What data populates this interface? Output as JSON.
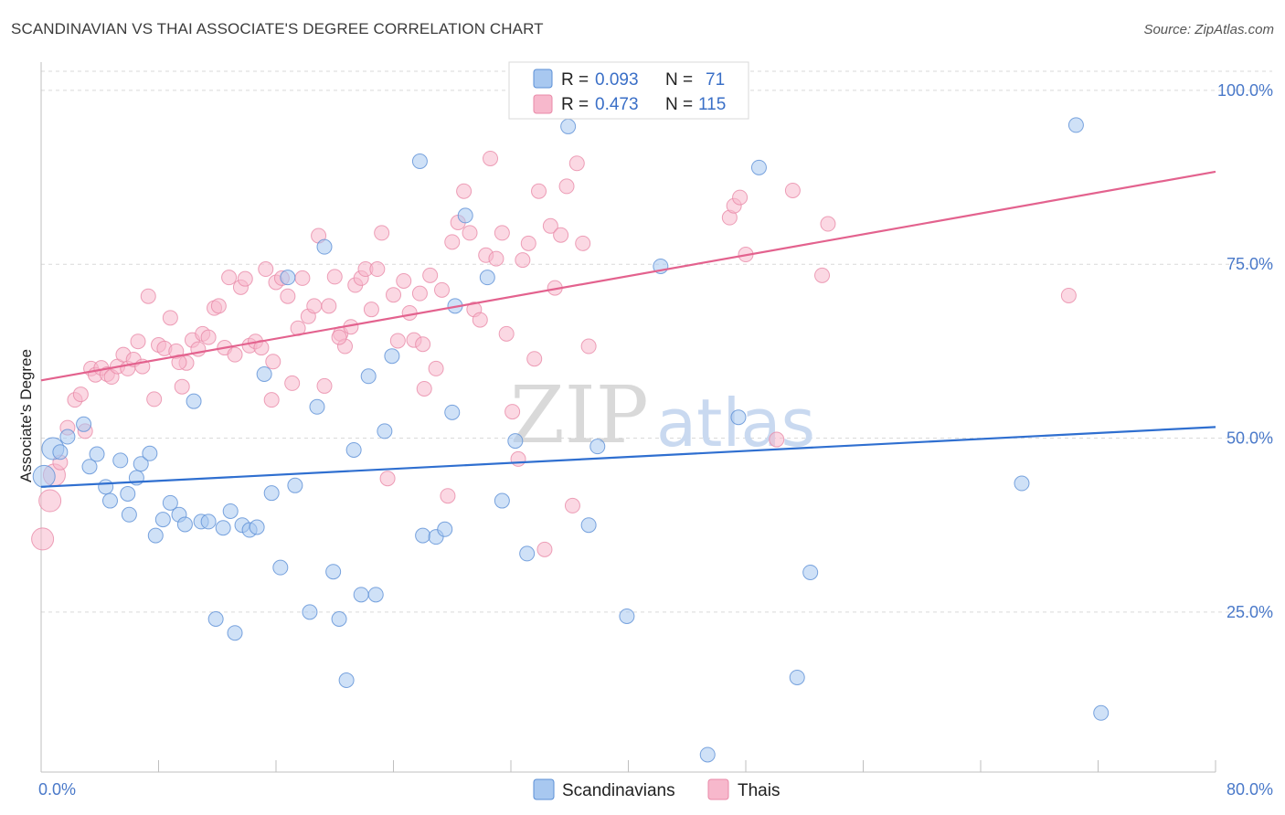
{
  "header": {
    "title": "SCANDINAVIAN VS THAI ASSOCIATE'S DEGREE CORRELATION CHART",
    "source": "Source: ZipAtlas.com"
  },
  "watermark": {
    "zip": "ZIP",
    "atlas": "atlas"
  },
  "legend": {
    "r_label": "R =",
    "n_label": "N =",
    "rows": [
      {
        "r": "0.093",
        "n": "71",
        "color": "#a8c8f0"
      },
      {
        "r": "0.473",
        "n": "115",
        "color": "#f7b8cc"
      }
    ]
  },
  "bottom_legend": [
    {
      "label": "Scandinavians",
      "color": "#a8c8f0"
    },
    {
      "label": "Thais",
      "color": "#f7b8cc"
    }
  ],
  "colors": {
    "blue_fill": "#a8c8f0",
    "blue_stroke": "#5b8fd6",
    "blue_line": "#2f6fd0",
    "pink_fill": "#f7b8cc",
    "pink_stroke": "#e98aa8",
    "pink_line": "#e3628e",
    "grid": "#d9d9d9",
    "tick": "#4a79c9"
  },
  "chart_data": {
    "type": "scatter",
    "title": "SCANDINAVIAN VS THAI ASSOCIATE'S DEGREE CORRELATION CHART",
    "xlabel": "",
    "ylabel": "Associate's Degree",
    "xlim": [
      0,
      80
    ],
    "ylim": [
      2,
      103
    ],
    "x_tick_labels": [
      {
        "value": 0,
        "label": "0.0%"
      },
      {
        "value": 80,
        "label": "80.0%"
      }
    ],
    "y_tick_labels": [
      {
        "value": 25,
        "label": "25.0%"
      },
      {
        "value": 50,
        "label": "50.0%"
      },
      {
        "value": 75,
        "label": "75.0%"
      },
      {
        "value": 100,
        "label": "100.0%"
      }
    ],
    "series": [
      {
        "name": "Scandinavians",
        "r": 0.093,
        "n": 71,
        "trend": {
          "x": [
            0,
            80
          ],
          "y": [
            43.0,
            51.6
          ]
        },
        "points": [
          [
            0.2,
            44.5
          ],
          [
            0.8,
            48.5
          ],
          [
            1.3,
            48.0
          ],
          [
            1.8,
            50.2
          ],
          [
            2.9,
            52.0
          ],
          [
            3.3,
            45.9
          ],
          [
            3.8,
            47.7
          ],
          [
            4.4,
            43.0
          ],
          [
            4.7,
            41.0
          ],
          [
            5.4,
            46.8
          ],
          [
            5.9,
            42.0
          ],
          [
            6.5,
            44.3
          ],
          [
            6.8,
            46.3
          ],
          [
            7.4,
            47.8
          ],
          [
            7.8,
            36.0
          ],
          [
            8.3,
            38.3
          ],
          [
            8.8,
            40.7
          ],
          [
            9.4,
            39.0
          ],
          [
            9.8,
            37.6
          ],
          [
            10.4,
            55.3
          ],
          [
            10.9,
            38.0
          ],
          [
            11.4,
            38.0
          ],
          [
            11.9,
            24.0
          ],
          [
            12.4,
            37.1
          ],
          [
            12.9,
            39.5
          ],
          [
            13.2,
            22.0
          ],
          [
            13.7,
            37.5
          ],
          [
            14.2,
            36.8
          ],
          [
            14.7,
            37.2
          ],
          [
            15.2,
            59.2
          ],
          [
            15.7,
            42.1
          ],
          [
            16.3,
            31.4
          ],
          [
            16.8,
            73.1
          ],
          [
            17.3,
            43.2
          ],
          [
            18.3,
            25.0
          ],
          [
            18.8,
            54.5
          ],
          [
            19.3,
            77.5
          ],
          [
            19.9,
            30.8
          ],
          [
            20.3,
            24.0
          ],
          [
            20.8,
            15.2
          ],
          [
            21.3,
            48.3
          ],
          [
            21.8,
            27.5
          ],
          [
            22.3,
            58.9
          ],
          [
            22.8,
            27.5
          ],
          [
            23.4,
            51.0
          ],
          [
            23.9,
            61.8
          ],
          [
            25.8,
            89.8
          ],
          [
            26.0,
            36.0
          ],
          [
            26.9,
            35.8
          ],
          [
            27.5,
            36.9
          ],
          [
            28.0,
            53.7
          ],
          [
            28.2,
            69.0
          ],
          [
            28.9,
            82.0
          ],
          [
            30.4,
            73.1
          ],
          [
            31.4,
            41.0
          ],
          [
            32.3,
            49.6
          ],
          [
            33.1,
            33.4
          ],
          [
            35.9,
            94.8
          ],
          [
            37.3,
            37.5
          ],
          [
            37.9,
            48.8
          ],
          [
            39.9,
            24.4
          ],
          [
            42.2,
            74.7
          ],
          [
            45.4,
            4.5
          ],
          [
            47.5,
            53.0
          ],
          [
            48.9,
            88.9
          ],
          [
            51.5,
            15.6
          ],
          [
            52.4,
            30.7
          ],
          [
            66.8,
            43.5
          ],
          [
            70.5,
            95.0
          ],
          [
            72.2,
            10.5
          ],
          [
            6.0,
            39.0
          ]
        ]
      },
      {
        "name": "Thais",
        "r": 0.473,
        "n": 115,
        "trend": {
          "x": [
            0,
            80
          ],
          "y": [
            58.3,
            88.3
          ]
        },
        "points": [
          [
            0.1,
            35.5
          ],
          [
            0.6,
            41.0
          ],
          [
            0.9,
            44.7
          ],
          [
            1.3,
            46.5
          ],
          [
            1.8,
            51.5
          ],
          [
            2.3,
            55.5
          ],
          [
            2.7,
            56.3
          ],
          [
            3.0,
            51.0
          ],
          [
            3.4,
            60.0
          ],
          [
            3.7,
            59.1
          ],
          [
            4.1,
            60.1
          ],
          [
            4.5,
            59.2
          ],
          [
            4.8,
            58.8
          ],
          [
            5.2,
            60.3
          ],
          [
            5.6,
            62.0
          ],
          [
            5.9,
            60.0
          ],
          [
            6.3,
            61.3
          ],
          [
            6.6,
            63.9
          ],
          [
            6.9,
            60.3
          ],
          [
            7.3,
            70.4
          ],
          [
            7.7,
            55.6
          ],
          [
            8.0,
            63.4
          ],
          [
            8.4,
            62.9
          ],
          [
            8.8,
            67.3
          ],
          [
            9.2,
            62.5
          ],
          [
            9.6,
            57.4
          ],
          [
            9.9,
            60.8
          ],
          [
            10.3,
            64.1
          ],
          [
            10.7,
            62.8
          ],
          [
            11.0,
            65.0
          ],
          [
            11.4,
            64.5
          ],
          [
            11.8,
            68.7
          ],
          [
            12.1,
            69.0
          ],
          [
            12.5,
            63.0
          ],
          [
            12.8,
            73.1
          ],
          [
            13.2,
            62.0
          ],
          [
            13.6,
            71.7
          ],
          [
            13.9,
            72.9
          ],
          [
            14.2,
            63.3
          ],
          [
            14.6,
            63.9
          ],
          [
            15.0,
            63.0
          ],
          [
            15.3,
            74.3
          ],
          [
            15.7,
            55.5
          ],
          [
            16.0,
            72.4
          ],
          [
            16.4,
            73.0
          ],
          [
            16.8,
            70.4
          ],
          [
            17.1,
            57.9
          ],
          [
            17.5,
            65.8
          ],
          [
            17.8,
            73.0
          ],
          [
            18.2,
            67.5
          ],
          [
            18.6,
            69.0
          ],
          [
            18.9,
            79.1
          ],
          [
            19.3,
            57.5
          ],
          [
            19.6,
            69.0
          ],
          [
            20.0,
            73.2
          ],
          [
            20.4,
            65.0
          ],
          [
            20.7,
            63.2
          ],
          [
            21.1,
            66.0
          ],
          [
            21.4,
            72.0
          ],
          [
            21.8,
            73.0
          ],
          [
            22.1,
            74.3
          ],
          [
            22.5,
            68.5
          ],
          [
            22.9,
            74.3
          ],
          [
            23.2,
            79.5
          ],
          [
            23.6,
            44.2
          ],
          [
            24.0,
            70.6
          ],
          [
            24.3,
            64.0
          ],
          [
            24.7,
            72.6
          ],
          [
            25.1,
            68.0
          ],
          [
            25.4,
            64.1
          ],
          [
            25.8,
            70.8
          ],
          [
            26.1,
            57.1
          ],
          [
            26.5,
            73.4
          ],
          [
            26.9,
            60.0
          ],
          [
            27.3,
            71.3
          ],
          [
            27.7,
            41.7
          ],
          [
            28.0,
            78.2
          ],
          [
            28.4,
            81.0
          ],
          [
            28.8,
            85.5
          ],
          [
            29.2,
            79.5
          ],
          [
            29.5,
            68.5
          ],
          [
            29.9,
            67.0
          ],
          [
            30.3,
            76.3
          ],
          [
            30.6,
            90.2
          ],
          [
            31.0,
            75.8
          ],
          [
            31.4,
            79.5
          ],
          [
            31.7,
            65.0
          ],
          [
            32.1,
            53.8
          ],
          [
            32.5,
            47.0
          ],
          [
            32.8,
            75.6
          ],
          [
            33.2,
            78.0
          ],
          [
            33.6,
            61.4
          ],
          [
            33.9,
            85.5
          ],
          [
            34.3,
            34.0
          ],
          [
            34.7,
            80.5
          ],
          [
            35.0,
            71.6
          ],
          [
            35.4,
            79.2
          ],
          [
            35.8,
            86.2
          ],
          [
            36.2,
            40.3
          ],
          [
            36.5,
            89.5
          ],
          [
            36.9,
            78.0
          ],
          [
            37.3,
            63.2
          ],
          [
            46.9,
            81.7
          ],
          [
            47.2,
            83.4
          ],
          [
            47.6,
            84.6
          ],
          [
            48.0,
            76.4
          ],
          [
            50.1,
            49.8
          ],
          [
            51.2,
            85.6
          ],
          [
            53.2,
            73.4
          ],
          [
            53.6,
            80.8
          ],
          [
            70.0,
            70.5
          ],
          [
            26.0,
            63.5
          ],
          [
            20.3,
            64.5
          ],
          [
            9.4,
            60.9
          ],
          [
            15.8,
            61.0
          ]
        ]
      }
    ]
  }
}
